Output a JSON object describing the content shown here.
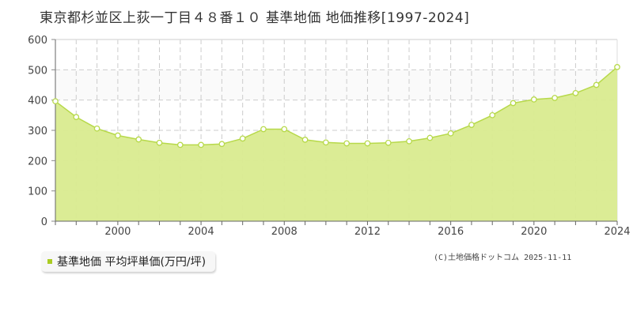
{
  "title": "東京都杉並区上荻一丁目４８番１０ 基準地価 地価推移[1997-2024]",
  "legend": {
    "label": "基準地価 平均坪単価(万円/坪)",
    "color": "#aacc22"
  },
  "copyright": "(C)土地価格ドットコム 2025-11-11",
  "colors": {
    "fill": "#d9eb8f",
    "line": "#b7d94a",
    "point_fill": "#ffffff",
    "band": "#fafafa",
    "grid": "#cccccc"
  },
  "chart_data": {
    "type": "area",
    "title": "東京都杉並区上荻一丁目４８番１０ 基準地価 地価推移[1997-2024]",
    "xlabel": "",
    "ylabel": "",
    "x": [
      1997,
      1998,
      1999,
      2000,
      2001,
      2002,
      2003,
      2004,
      2005,
      2006,
      2007,
      2008,
      2009,
      2010,
      2011,
      2012,
      2013,
      2014,
      2015,
      2016,
      2017,
      2018,
      2019,
      2020,
      2021,
      2022,
      2023,
      2024
    ],
    "series": [
      {
        "name": "基準地価 平均坪単価(万円/坪)",
        "values": [
          396,
          344,
          306,
          283,
          270,
          259,
          252,
          252,
          255,
          273,
          304,
          304,
          269,
          260,
          257,
          257,
          259,
          264,
          275,
          290,
          318,
          350,
          390,
          402,
          407,
          423,
          450,
          509
        ]
      }
    ],
    "xticks": [
      2000,
      2004,
      2008,
      2012,
      2016,
      2020,
      2024
    ],
    "yticks": [
      0,
      100,
      200,
      300,
      400,
      500,
      600
    ],
    "ylim": [
      0,
      600
    ],
    "xlim": [
      1997,
      2024
    ],
    "grid": true,
    "legend_position": "bottom-left"
  }
}
